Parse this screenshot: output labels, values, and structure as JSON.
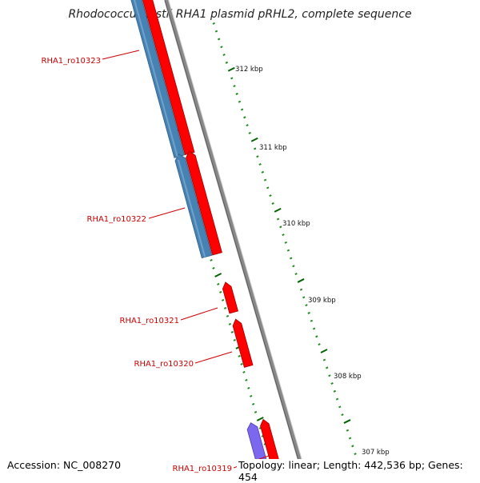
{
  "title": "Rhodococcus jostii RHA1 plasmid pRHL2, complete sequence",
  "footer": {
    "accession": "Accession: NC_008270",
    "summary": "Topology: linear; Length: 442,536 bp; Genes: 454"
  },
  "scale": {
    "unit": "kbp",
    "major_ticks": [
      "312 kbp",
      "311 kbp",
      "310 kbp",
      "309 kbp",
      "308 kbp",
      "307 kbp"
    ]
  },
  "genes": [
    {
      "locus": "RHA1_ro10323",
      "strand": "reverse",
      "track": "outer",
      "has_cds": true,
      "cds_color": "#4682B4",
      "gene_color": "#FF0000"
    },
    {
      "locus": "RHA1_ro10322",
      "strand": "reverse",
      "track": "outer",
      "has_cds": true,
      "cds_color": "#4682B4",
      "gene_color": "#FF0000"
    },
    {
      "locus": "RHA1_ro10321",
      "strand": "forward",
      "track": "outer",
      "has_cds": false,
      "gene_color": "#FF0000"
    },
    {
      "locus": "RHA1_ro10320",
      "strand": "forward",
      "track": "outer",
      "has_cds": false,
      "gene_color": "#FF0000"
    },
    {
      "locus": "RHA1_ro10319",
      "strand": "forward",
      "track": "outer",
      "has_cds": true,
      "cds_color": "#7B68EE",
      "gene_color": "#FF0000"
    }
  ],
  "colors": {
    "backbone": "#888888",
    "label": "#CC0000",
    "tick_major": "#006400",
    "tick_minor": "#228B22"
  }
}
